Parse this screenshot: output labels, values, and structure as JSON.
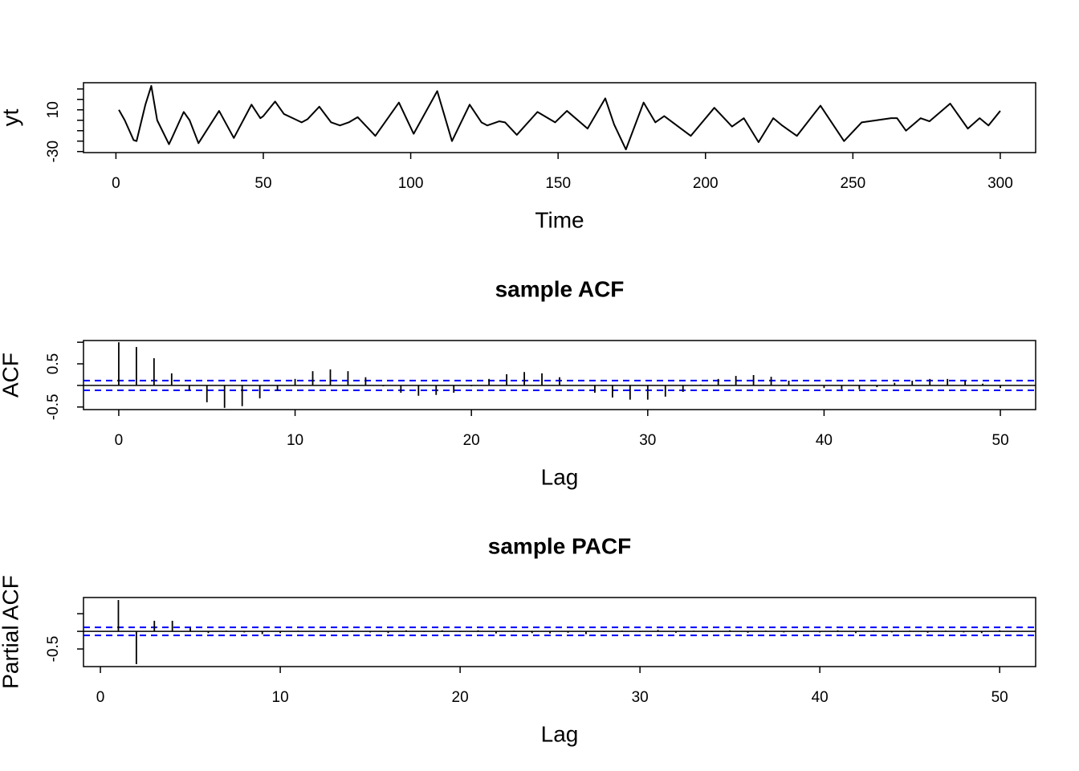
{
  "chart_data": [
    {
      "type": "line",
      "xlabel": "Time",
      "ylabel": "yt",
      "color": "#000000",
      "x": [
        1,
        3,
        6,
        7,
        10,
        12,
        14,
        18,
        19,
        23,
        25,
        28,
        35,
        40,
        46,
        49,
        50,
        54,
        57,
        60,
        63,
        65,
        69,
        73,
        76,
        79,
        82,
        88,
        96,
        101,
        109,
        114,
        120,
        124,
        126,
        130,
        132,
        136,
        143,
        149,
        153,
        160,
        166,
        169,
        173,
        179,
        183,
        186,
        195,
        203,
        209,
        213,
        218,
        223,
        226,
        228,
        231,
        239,
        247,
        253,
        258,
        263,
        265,
        268,
        273,
        276,
        283,
        289,
        293,
        296,
        300
      ],
      "values": [
        10,
        0,
        -19,
        -20,
        15,
        33,
        0,
        -23,
        -17,
        8,
        0,
        -22,
        9,
        -17,
        15,
        2,
        4,
        18,
        6,
        2,
        -2,
        1,
        13,
        -2,
        -5,
        -2,
        3,
        -15,
        17,
        -13,
        28,
        -20,
        15,
        -2,
        -5,
        -1,
        -2,
        -14,
        8,
        -2,
        9,
        -8,
        21,
        -4,
        -28,
        17,
        -2,
        4,
        -15,
        12,
        -6,
        2,
        -21,
        2,
        -5,
        -9,
        -15,
        14,
        -20,
        -2,
        0,
        2,
        2,
        -10,
        2,
        -1,
        16,
        -8,
        2,
        -5,
        9
      ],
      "xlim": [
        -11,
        312
      ],
      "xticks": [
        0,
        50,
        100,
        150,
        200,
        250,
        300
      ],
      "ylim": [
        -31,
        36
      ],
      "yticks": [
        -30,
        10
      ],
      "yminor_ticks": [
        -20,
        -10,
        0,
        20,
        30
      ]
    },
    {
      "type": "stem",
      "title": "sample ACF",
      "xlabel": "Lag",
      "ylabel": "ACF",
      "color": "#000000",
      "x": [
        0,
        1,
        2,
        3,
        4,
        5,
        6,
        7,
        8,
        9,
        10,
        11,
        12,
        13,
        14,
        15,
        16,
        17,
        18,
        19,
        20,
        21,
        22,
        23,
        24,
        25,
        26,
        27,
        28,
        29,
        30,
        31,
        32,
        33,
        34,
        35,
        36,
        37,
        38,
        39,
        40,
        41,
        42,
        43,
        44,
        45,
        46,
        47,
        48,
        49,
        50
      ],
      "values": [
        1,
        0.89,
        0.63,
        0.28,
        -0.11,
        -0.39,
        -0.52,
        -0.48,
        -0.3,
        -0.13,
        0.15,
        0.33,
        0.37,
        0.33,
        0.19,
        -0.02,
        -0.17,
        -0.24,
        -0.22,
        -0.17,
        -0.02,
        0.15,
        0.26,
        0.31,
        0.28,
        0.19,
        -0.01,
        -0.17,
        -0.28,
        -0.33,
        -0.33,
        -0.26,
        -0.15,
        0.02,
        0.15,
        0.22,
        0.24,
        0.2,
        0.11,
        0,
        -0.06,
        -0.09,
        -0.09,
        -0.04,
        0.06,
        0.11,
        0.15,
        0.15,
        0.11,
        0.04,
        -0.06
      ],
      "ci": 0.113,
      "ci_color": "#0000ff",
      "xlim": [
        -2,
        52
      ],
      "xticks": [
        0,
        10,
        20,
        30,
        40,
        50
      ],
      "ylim": [
        -0.56,
        1.04
      ],
      "yticks": [
        -0.5,
        0.5
      ],
      "yminor_ticks": [
        0,
        1
      ]
    },
    {
      "type": "stem",
      "title": "sample PACF",
      "xlabel": "Lag",
      "ylabel": "Partial ACF",
      "color": "#000000",
      "x": [
        1,
        2,
        3,
        4,
        5,
        6,
        7,
        8,
        9,
        10,
        11,
        12,
        13,
        14,
        15,
        16,
        17,
        18,
        19,
        20,
        21,
        22,
        23,
        24,
        25,
        26,
        27,
        28,
        29,
        30,
        31,
        32,
        33,
        34,
        35,
        36,
        37,
        38,
        39,
        40,
        41,
        42,
        43,
        44,
        45,
        46,
        47,
        48,
        49,
        50
      ],
      "values": [
        0.89,
        -0.93,
        0.3,
        0.3,
        0.1,
        -0.05,
        0.02,
        -0.03,
        -0.08,
        -0.05,
        0.02,
        0.01,
        -0.02,
        0.02,
        -0.03,
        -0.05,
        0.03,
        -0.02,
        0.03,
        -0.02,
        0.03,
        -0.06,
        0.02,
        -0.05,
        -0.06,
        -0.04,
        -0.08,
        -0.02,
        0.02,
        -0.02,
        0.04,
        -0.04,
        0.02,
        -0.02,
        0.03,
        -0.04,
        0.02,
        -0.03,
        -0.02,
        -0.03,
        0.03,
        -0.05,
        0.02,
        -0.03,
        0.02,
        -0.04,
        0.02,
        -0.03,
        -0.05,
        0.03
      ],
      "ci": 0.113,
      "ci_color": "#0000ff",
      "xlim": [
        -0.94,
        52
      ],
      "xticks": [
        0,
        10,
        20,
        30,
        40,
        50
      ],
      "ylim": [
        -1.0,
        0.96
      ],
      "yticks": [
        -0.5
      ],
      "yminor_ticks": [
        0,
        0.5
      ]
    }
  ]
}
